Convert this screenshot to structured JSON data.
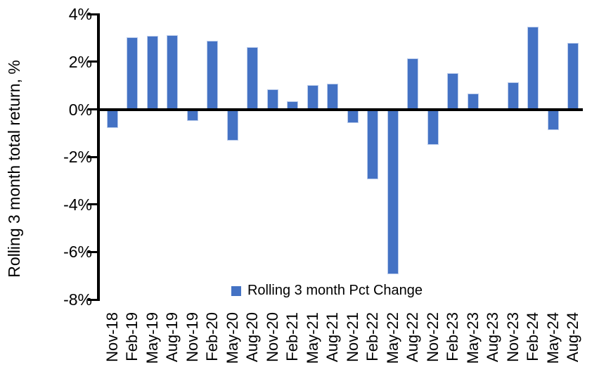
{
  "chart_data": {
    "type": "bar",
    "title": "",
    "xlabel": "",
    "ylabel": "Rolling 3 month total return, %",
    "ylim": [
      -8,
      4
    ],
    "ytick_step": 2,
    "yticks": [
      {
        "value": 4,
        "label": "4%"
      },
      {
        "value": 2,
        "label": "2%"
      },
      {
        "value": 0,
        "label": "0%"
      },
      {
        "value": -2,
        "label": "-2%"
      },
      {
        "value": -4,
        "label": "-4%"
      },
      {
        "value": -6,
        "label": "-6%"
      },
      {
        "value": -8,
        "label": "-8%"
      }
    ],
    "grid": false,
    "legend_position": "bottom-center",
    "categories": [
      "Nov-18",
      "Feb-19",
      "May-19",
      "Aug-19",
      "Nov-19",
      "Feb-20",
      "May-20",
      "Aug-20",
      "Nov-20",
      "Feb-21",
      "May-21",
      "Aug-21",
      "Nov-21",
      "Feb-22",
      "May-22",
      "Aug-22",
      "Nov-22",
      "Feb-23",
      "May-23",
      "Aug-23",
      "Nov-23",
      "Feb-24",
      "May-24",
      "Aug-24"
    ],
    "series": [
      {
        "name": "Rolling 3 month Pct Change",
        "values": [
          -0.75,
          3.0,
          3.05,
          3.1,
          -0.45,
          2.85,
          -1.3,
          2.6,
          0.8,
          0.3,
          1.0,
          1.05,
          -0.55,
          -2.9,
          -6.9,
          2.1,
          -1.45,
          1.5,
          0.65,
          0.0,
          1.1,
          3.45,
          -0.85,
          2.75
        ]
      }
    ],
    "colors": {
      "bar": "#4472C4",
      "axis": "#000000",
      "text": "#000000",
      "background": "#FFFFFF"
    }
  },
  "legend": {
    "label": "Rolling 3 month Pct Change"
  },
  "y_axis": {
    "title": "Rolling 3 month total return, %"
  }
}
